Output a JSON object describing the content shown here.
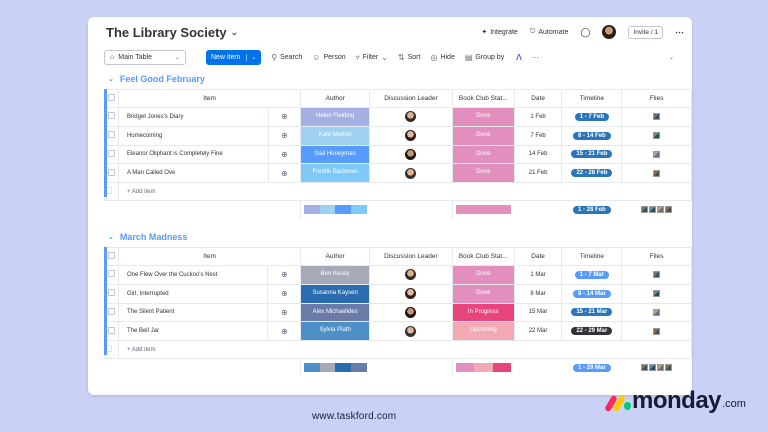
{
  "board": {
    "title": "The Library Society",
    "integrate": "Integrate",
    "automate": "Automate",
    "invite": "Invite / 1"
  },
  "toolbar": {
    "main_table": "Main Table",
    "new_item": "New item",
    "search": "Search",
    "person": "Person",
    "filter": "Filter",
    "sort": "Sort",
    "hide": "Hide",
    "group_by": "Group by"
  },
  "columns": [
    "Item",
    "Author",
    "Discussion Leader",
    "Book Club Stat...",
    "Date",
    "Timeline",
    "Files"
  ],
  "add_item": "+ Add item",
  "groups": [
    {
      "title": "Feel Good February",
      "color": "#579bfc",
      "rows": [
        {
          "item": "Bridget Jones's Diary",
          "author": "Helen Fielding",
          "author_color": "#a4b0e4",
          "status": "Done",
          "status_color": "#e28fbe",
          "date": "1 Feb",
          "timeline": "1 - 7 Feb",
          "timeline_color": "#2b76b9"
        },
        {
          "item": "Homecoming",
          "author": "Kate Morton",
          "author_color": "#9ed0f0",
          "status": "Done",
          "status_color": "#e28fbe",
          "date": "7 Feb",
          "timeline": "8 - 14 Feb",
          "timeline_color": "#2b76b9"
        },
        {
          "item": "Eleanor Oliphant is Completely Fine",
          "author": "Gail Honeyman",
          "author_color": "#579bfc",
          "status": "Done",
          "status_color": "#e28fbe",
          "date": "14 Feb",
          "timeline": "15 - 21 Feb",
          "timeline_color": "#2b76b9"
        },
        {
          "item": "A Man Called Ove",
          "author": "Fredrik Backman",
          "author_color": "#7ec9f5",
          "status": "Done",
          "status_color": "#e28fbe",
          "date": "21 Feb",
          "timeline": "22 - 28 Feb",
          "timeline_color": "#2b76b9"
        }
      ],
      "summary_timeline": "1 - 28 Feb",
      "summary_timeline_color": "#2b76b9",
      "summary_author_colors": [
        "#a4b0e4",
        "#9ed0f0",
        "#579bfc",
        "#7ec9f5"
      ],
      "summary_status_colors": [
        "#e28fbe"
      ]
    },
    {
      "title": "March Madness",
      "color": "#579bfc",
      "rows": [
        {
          "item": "One Flew Over the Cuckoo's Nest",
          "author": "Ben Kesey",
          "author_color": "#a5a9b8",
          "status": "Done",
          "status_color": "#e28fbe",
          "date": "1 Mar",
          "timeline": "1 - 7 Mar",
          "timeline_color": "#579bfc"
        },
        {
          "item": "Girl, Interrupted",
          "author": "Susanna Kaysen",
          "author_color": "#2b6cb0",
          "status": "Done",
          "status_color": "#e28fbe",
          "date": "8 Mar",
          "timeline": "8 - 14 Mar",
          "timeline_color": "#579bfc"
        },
        {
          "item": "The Silent Patient",
          "author": "Alex Michaelides",
          "author_color": "#6b7ba8",
          "status": "In Progress",
          "status_color": "#e8447e",
          "date": "15 Mar",
          "timeline": "15 - 21 Mar",
          "timeline_color": "#2b76b9"
        },
        {
          "item": "The Bell Jar",
          "author": "Sylvia Plath",
          "author_color": "#4d8fc7",
          "status": "Upcoming",
          "status_color": "#f2a9b4",
          "date": "22 Mar",
          "timeline": "22 - 29 Mar",
          "timeline_color": "#323338"
        }
      ],
      "summary_timeline": "1 - 29 Mar",
      "summary_timeline_color": "#579bfc",
      "summary_author_colors": [
        "#4d8fc7",
        "#a5a9b8",
        "#2b6cb0",
        "#6b7ba8"
      ],
      "summary_status_colors": [
        "#e28fbe",
        "#f2a9b4",
        "#e8447e"
      ]
    }
  ],
  "footer": {
    "website": "www.taskford.com",
    "logo_word": "monday",
    "logo_suffix": ".com"
  }
}
